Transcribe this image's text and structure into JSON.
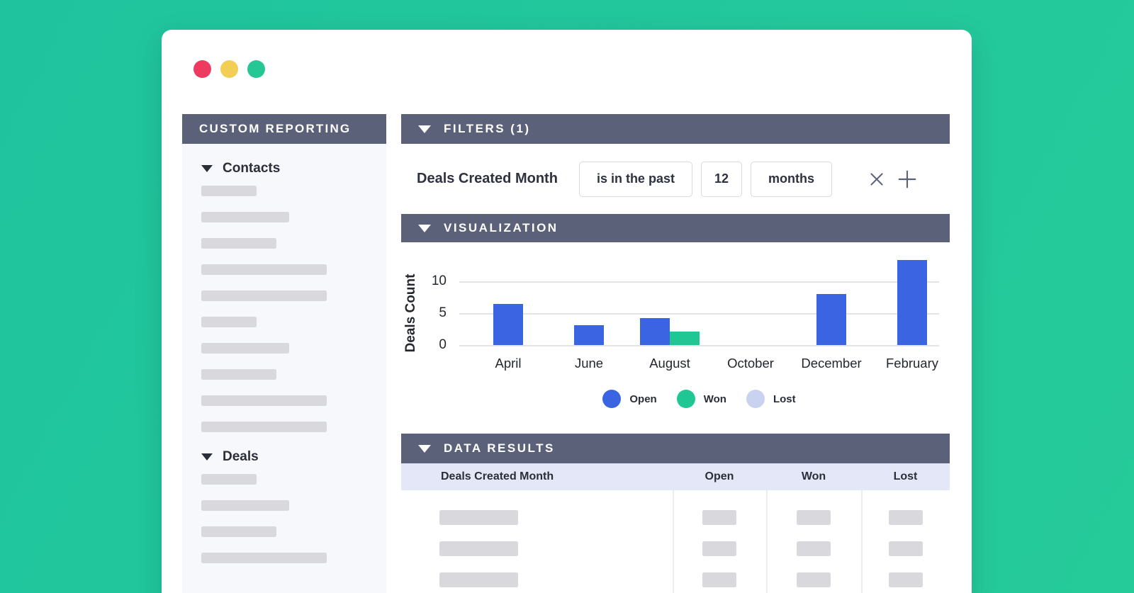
{
  "colors": {
    "background_teal": "#1fc49e",
    "background_teal_2": "#26cb9a",
    "window_bg": "#ffffff",
    "panel_header_bg": "#5b6178",
    "panel_header_text": "#ffffff",
    "sidebar_bg": "#f7f8fc",
    "skeleton_gray": "#d9d9dd",
    "text_dark": "#2e3140",
    "border_gray": "#d8dade",
    "table_header_bg": "#e4e7f7",
    "gridline": "#e3e3e8",
    "divider": "#ececf1",
    "dot_red": "#ee3a5f",
    "dot_yellow": "#f3ce55",
    "dot_green": "#25c795"
  },
  "window": {
    "traffic_lights": [
      "red",
      "yellow",
      "green"
    ]
  },
  "icons": {
    "section_collapse": "triangle-down-icon",
    "remove_filter": "x-icon",
    "add_filter": "plus-icon"
  },
  "sidebar": {
    "title": "CUSTOM REPORTING",
    "sections": [
      {
        "label": "Contacts",
        "skeleton_widths": [
          78,
          124,
          106,
          177,
          177,
          78,
          124,
          106,
          177,
          177
        ]
      },
      {
        "label": "Deals",
        "skeleton_widths": [
          78,
          124,
          106,
          177
        ]
      }
    ]
  },
  "filters": {
    "title": "FILTERS (1)",
    "count": 1,
    "field_label": "Deals Created Month",
    "operator": "is in the past",
    "value": "12",
    "unit": "months"
  },
  "visualization": {
    "title": "VISUALIZATION"
  },
  "chart_data": {
    "type": "bar",
    "categories": [
      "April",
      "June",
      "August",
      "October",
      "December",
      "February"
    ],
    "series": [
      {
        "name": "Open",
        "color": "#3a64e2",
        "values": [
          6.4,
          3.1,
          4.2,
          0,
          8,
          13.3
        ]
      },
      {
        "name": "Won",
        "color": "#1fc795",
        "values": [
          0,
          0,
          2.1,
          0,
          0,
          0
        ]
      },
      {
        "name": "Lost",
        "color": "#c9d3f0",
        "values": [
          0,
          0,
          0,
          0,
          0,
          0
        ]
      }
    ],
    "title": "",
    "xlabel": "",
    "ylabel": "Deals Count",
    "yticks": [
      0,
      5,
      10
    ],
    "ylim": [
      0,
      14
    ],
    "grid": true,
    "legend_position": "bottom"
  },
  "data_results": {
    "title": "DATA RESULTS",
    "columns": [
      "Deals Created Month",
      "Open",
      "Won",
      "Lost"
    ],
    "skeleton_rows": 3
  }
}
